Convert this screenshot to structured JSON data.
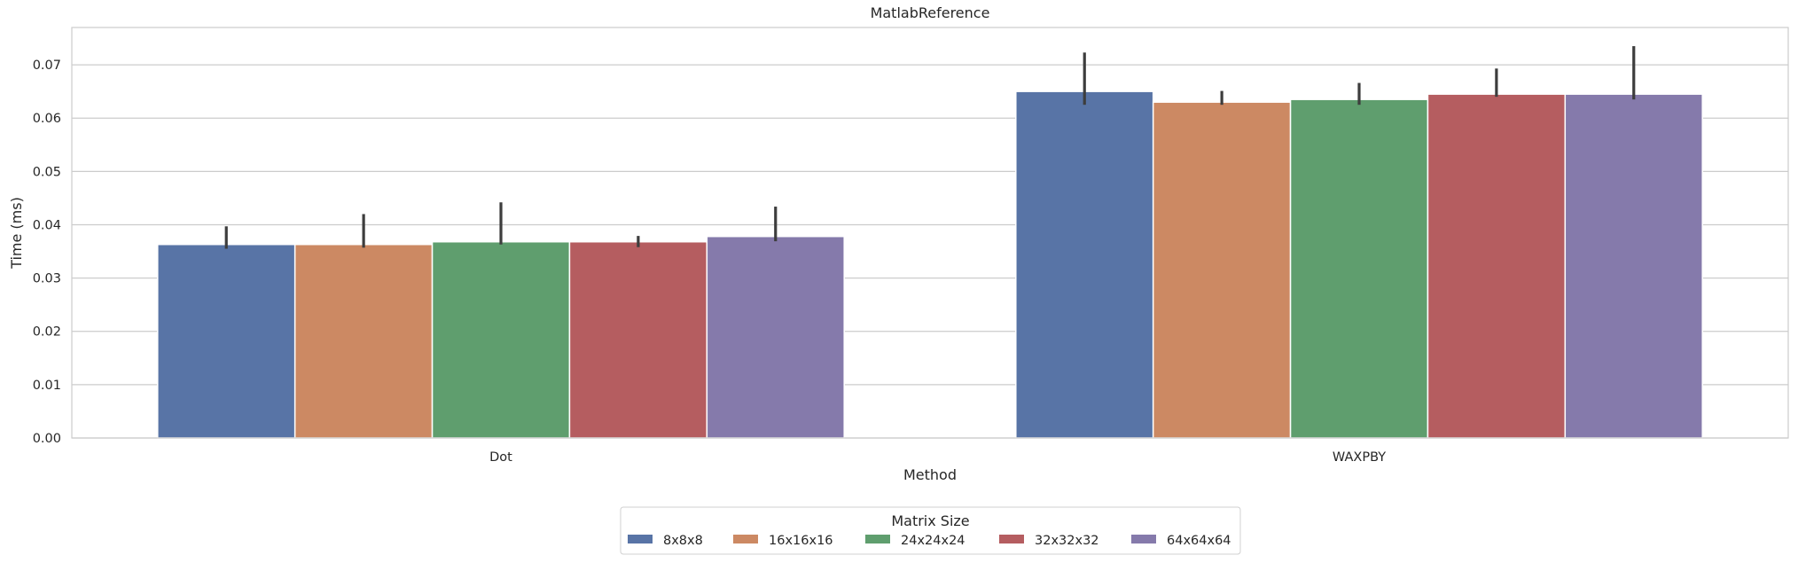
{
  "chart_data": {
    "type": "bar",
    "title": "MatlabReference",
    "xlabel": "Method",
    "ylabel": "Time (ms)",
    "categories": [
      "Dot",
      "WAXPBY"
    ],
    "ylim": [
      0,
      0.077
    ],
    "yticks": [
      "0.00",
      "0.01",
      "0.02",
      "0.03",
      "0.04",
      "0.05",
      "0.06",
      "0.07"
    ],
    "grid": true,
    "legend": {
      "title": "Matrix Size",
      "placement": "bottom-center"
    },
    "series": [
      {
        "name": "8x8x8",
        "color": "#5874a6",
        "values": [
          0.0363,
          0.065
        ],
        "err_low": [
          0.0355,
          0.0625
        ],
        "err_high": [
          0.0397,
          0.0723
        ]
      },
      {
        "name": "16x16x16",
        "color": "#cc8963",
        "values": [
          0.0363,
          0.063
        ],
        "err_low": [
          0.0357,
          0.0625
        ],
        "err_high": [
          0.042,
          0.0651
        ]
      },
      {
        "name": "24x24x24",
        "color": "#5f9e6e",
        "values": [
          0.0368,
          0.0635
        ],
        "err_low": [
          0.0363,
          0.0625
        ],
        "err_high": [
          0.0442,
          0.0666
        ]
      },
      {
        "name": "32x32x32",
        "color": "#b55d60",
        "values": [
          0.0368,
          0.0645
        ],
        "err_low": [
          0.0358,
          0.064
        ],
        "err_high": [
          0.0379,
          0.0693
        ]
      },
      {
        "name": "64x64x64",
        "color": "#857aab",
        "values": [
          0.0378,
          0.0645
        ],
        "err_low": [
          0.0369,
          0.0635
        ],
        "err_high": [
          0.0434,
          0.0735
        ]
      }
    ]
  }
}
